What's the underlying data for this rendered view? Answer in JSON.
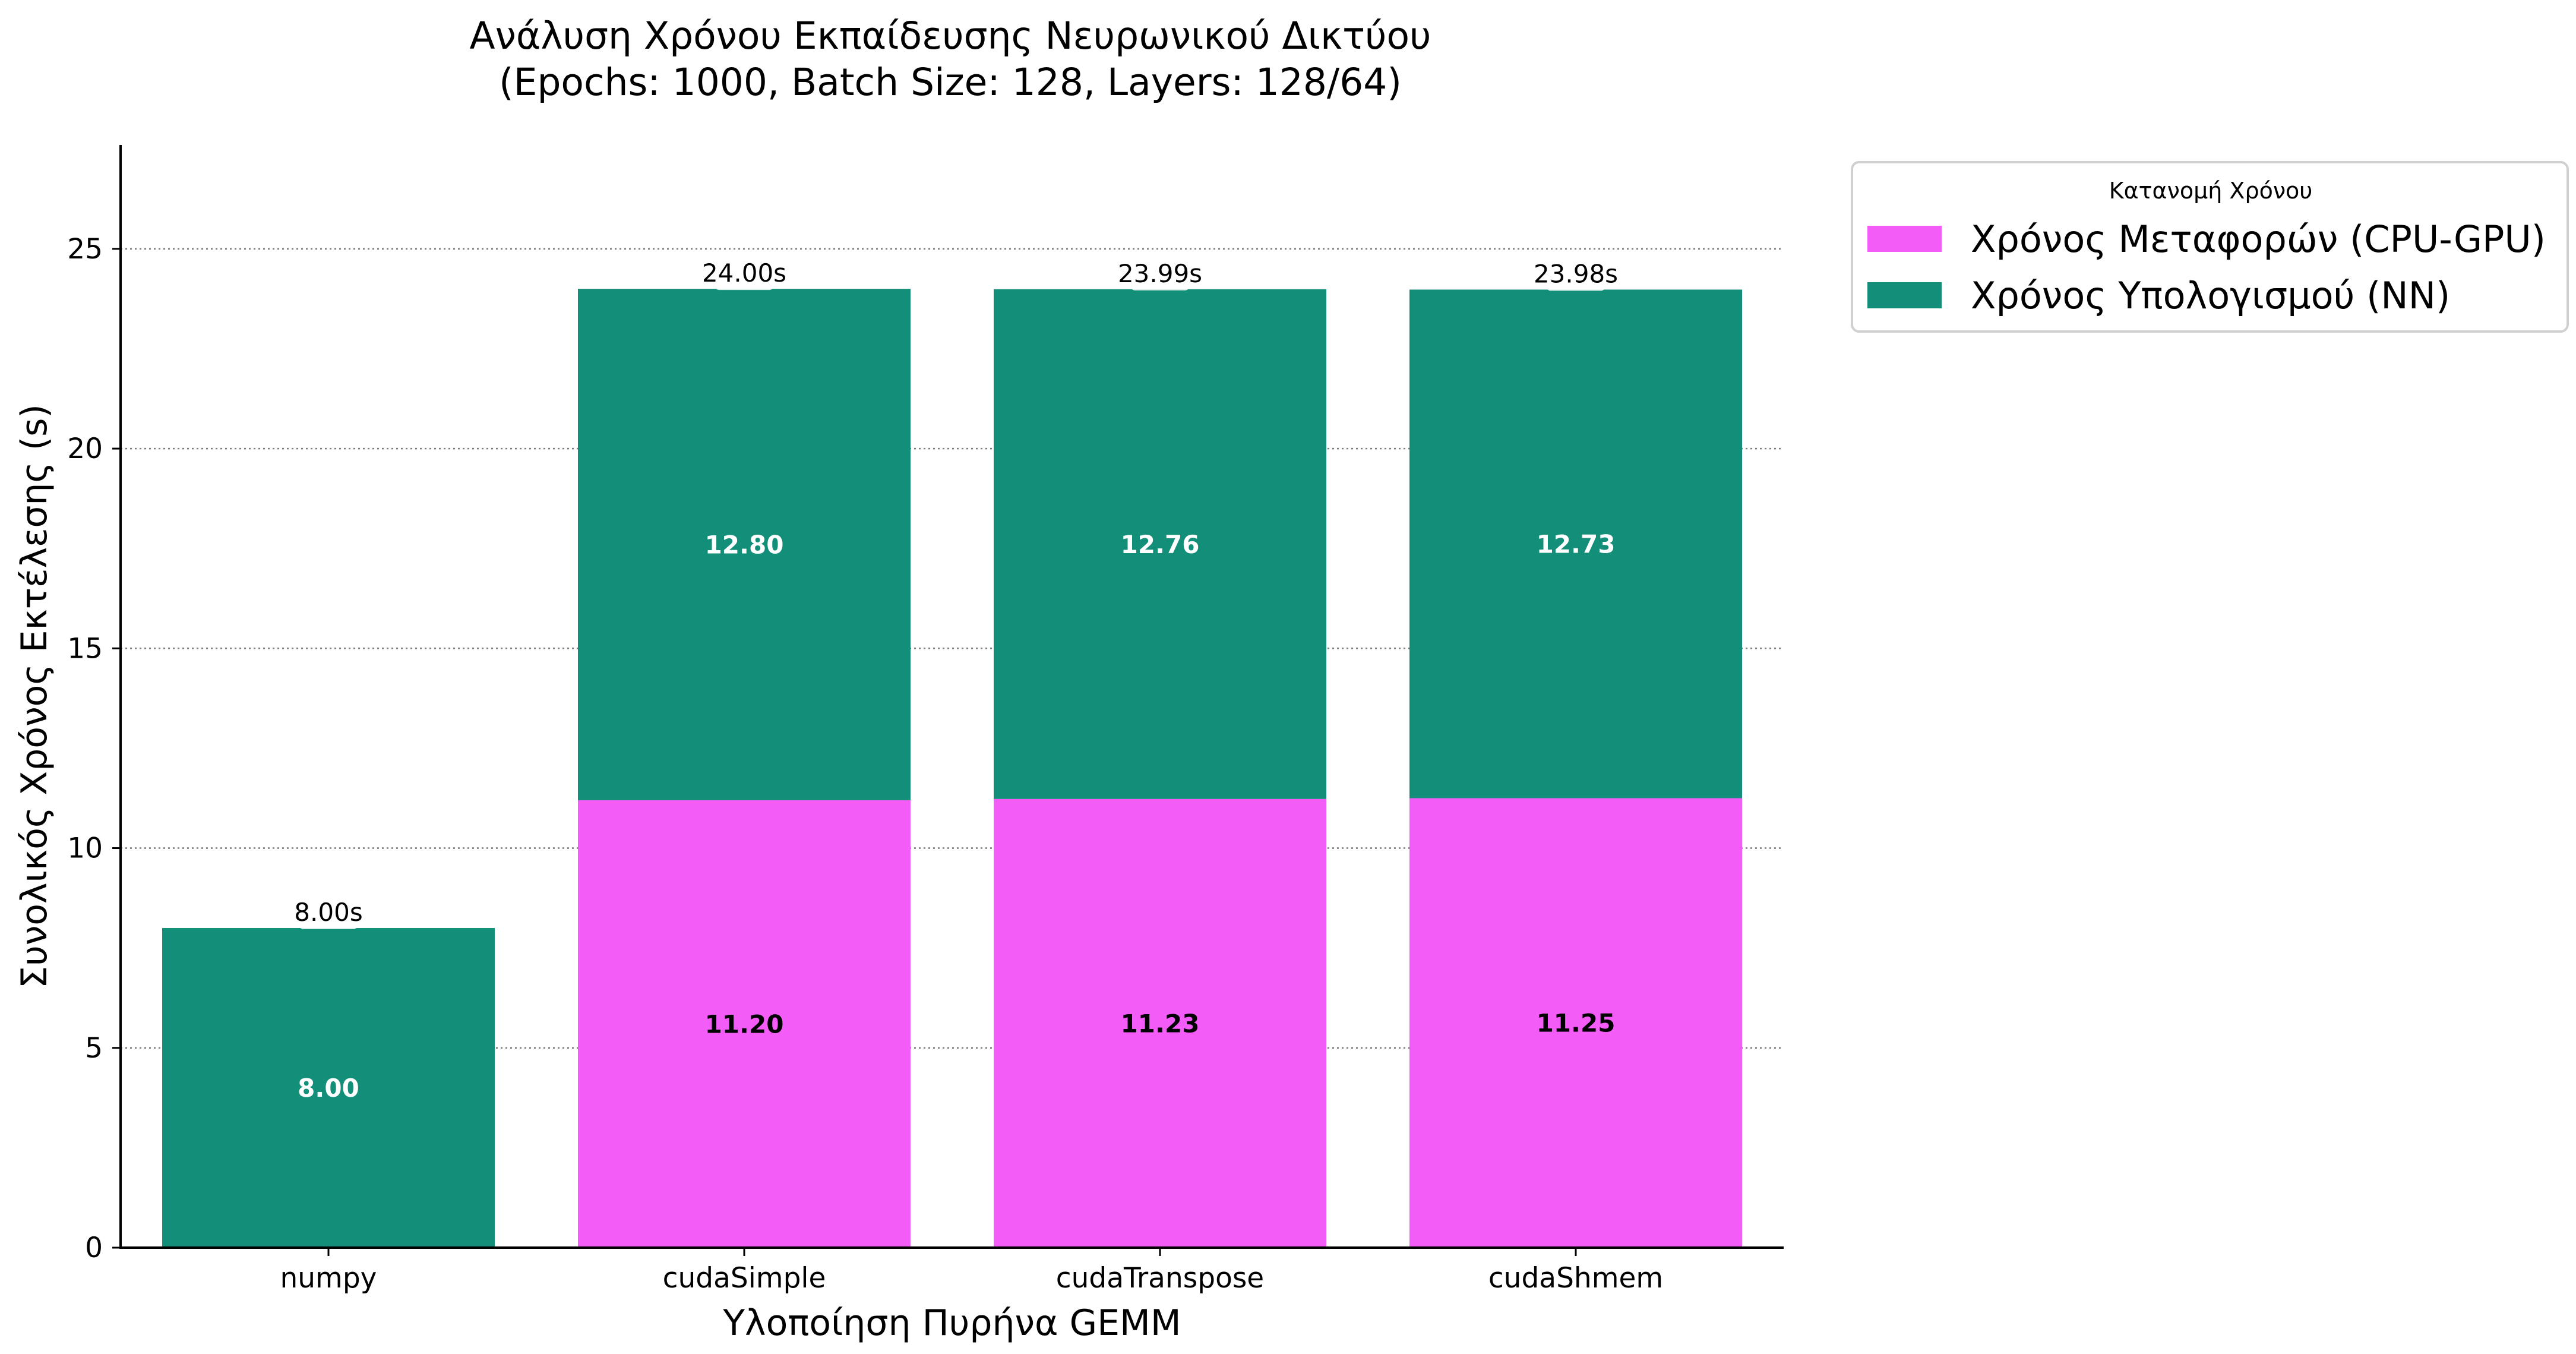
{
  "chart_data": {
    "type": "bar",
    "stacked": true,
    "title": "Ανάλυση Χρόνου Εκπαίδευσης Νευρωνικού Δικτύου",
    "subtitle": "(Epochs: 1000, Batch Size: 128, Layers: 128/64)",
    "xlabel": "Υλοποίηση Πυρήνα GEMM",
    "ylabel": "Συνολικός Χρόνος Εκτέλεσης (s)",
    "categories": [
      "numpy",
      "cudaSimple",
      "cudaTranspose",
      "cudaShmem"
    ],
    "ylim": [
      0,
      27.6
    ],
    "yticks": [
      0,
      5,
      10,
      15,
      20,
      25
    ],
    "grid": "horizontal dotted",
    "legend": {
      "title": "Κατανομή Χρόνου",
      "placement": "outside top-right"
    },
    "series": [
      {
        "name": "Χρόνος Μεταφορών (CPU-GPU)",
        "color": "#f35cf7",
        "values": [
          0,
          11.2,
          11.23,
          11.25
        ],
        "labels": [
          "",
          "11.20",
          "11.23",
          "11.25"
        ],
        "label_color": "#000000"
      },
      {
        "name": "Χρόνος Υπολογισμού (NN)",
        "color": "#138f79",
        "values": [
          8.0,
          12.8,
          12.76,
          12.73
        ],
        "labels": [
          "8.00",
          "12.80",
          "12.76",
          "12.73"
        ],
        "label_color": "#ffffff"
      }
    ],
    "totals": [
      8.0,
      24.0,
      23.99,
      23.98
    ],
    "total_labels": [
      "8.00s",
      "24.00s",
      "23.99s",
      "23.98s"
    ]
  }
}
